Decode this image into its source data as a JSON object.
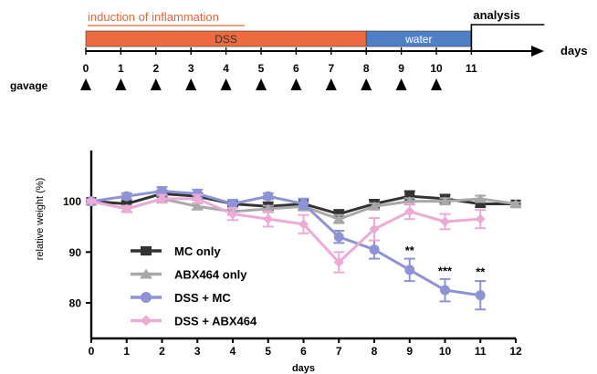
{
  "timeline": {
    "phase_label": "induction of inflammation",
    "dss_label": "DSS",
    "water_label": "water",
    "analysis_label": "analysis",
    "axis_label": "days",
    "gavage_label": "gavage",
    "days": [
      0,
      1,
      2,
      3,
      4,
      5,
      6,
      7,
      8,
      9,
      10,
      11
    ],
    "dss_range": [
      0,
      8
    ],
    "water_range": [
      8,
      11
    ],
    "analysis_day": 11,
    "gavage_days": [
      0,
      1,
      2,
      3,
      4,
      5,
      6,
      7,
      8,
      9,
      10
    ],
    "colors": {
      "dss": "#ee6a3f",
      "water": "#4f7fc6",
      "phase_text": "#e0673c"
    }
  },
  "chart_data": {
    "type": "line",
    "xlabel": "days",
    "ylabel": "relative weight (%)",
    "xlim": [
      0,
      12
    ],
    "ylim": [
      73,
      110
    ],
    "xticks": [
      0,
      1,
      2,
      3,
      4,
      5,
      6,
      7,
      8,
      9,
      10,
      11,
      12
    ],
    "yticks": [
      80,
      90,
      100
    ],
    "grid": false,
    "legend_position": "lower-left",
    "x": [
      0,
      1,
      2,
      3,
      4,
      5,
      6,
      7,
      8,
      9,
      10,
      11,
      12
    ],
    "series": [
      {
        "name": "MC only",
        "color": "#333333",
        "marker": "square",
        "x": [
          0,
          1,
          2,
          3,
          4,
          5,
          6,
          7,
          8,
          9,
          10,
          11,
          12
        ],
        "values": [
          100,
          99.5,
          101.5,
          101,
          99.5,
          99,
          99.5,
          97.5,
          99.5,
          101,
          100.5,
          99.5,
          99.5
        ],
        "errors": [
          0.3,
          0.5,
          0.6,
          0.6,
          0.5,
          0.8,
          1.0,
          0.8,
          0.8,
          1.0,
          0.8,
          0.6,
          0.3
        ]
      },
      {
        "name": "ABX464 only",
        "color": "#a8a8a8",
        "marker": "triangle",
        "x": [
          0,
          1,
          2,
          3,
          4,
          5,
          6,
          7,
          8,
          9,
          10,
          11,
          12
        ],
        "values": [
          100,
          98.5,
          100.5,
          99,
          98,
          98.5,
          99,
          96.5,
          99,
          100,
          100,
          100.5,
          99.5
        ],
        "errors": [
          0.3,
          0.6,
          0.6,
          0.6,
          0.6,
          0.6,
          0.8,
          0.8,
          0.6,
          0.6,
          0.6,
          0.6,
          0.3
        ]
      },
      {
        "name": "DSS + MC",
        "color": "#8d93d4",
        "marker": "circle",
        "x": [
          0,
          1,
          2,
          3,
          4,
          5,
          6,
          7,
          8,
          9,
          10,
          11
        ],
        "values": [
          100,
          101,
          102,
          101.5,
          99.5,
          101,
          99.5,
          93,
          90.5,
          86.5,
          82.5,
          81.5
        ],
        "errors": [
          0.3,
          0.6,
          0.8,
          0.8,
          0.8,
          0.6,
          1.0,
          1.2,
          1.8,
          2.2,
          2.2,
          2.8
        ]
      },
      {
        "name": "DSS + ABX464",
        "color": "#ecaad6",
        "marker": "diamond",
        "x": [
          0,
          1,
          2,
          3,
          4,
          5,
          6,
          7,
          8,
          9,
          10,
          11
        ],
        "values": [
          100,
          98.5,
          100.5,
          100.5,
          97.5,
          96.5,
          95.5,
          88,
          94.5,
          98,
          96,
          96.5
        ],
        "errors": [
          0.3,
          0.6,
          0.8,
          0.8,
          1.2,
          1.5,
          1.8,
          2.0,
          2.2,
          1.5,
          1.5,
          1.8
        ]
      }
    ],
    "annotations": [
      {
        "text": "**",
        "x": 9,
        "y": 89.5
      },
      {
        "text": "***",
        "x": 10,
        "y": 85.5
      },
      {
        "text": "**",
        "x": 11,
        "y": 85.3
      }
    ]
  }
}
